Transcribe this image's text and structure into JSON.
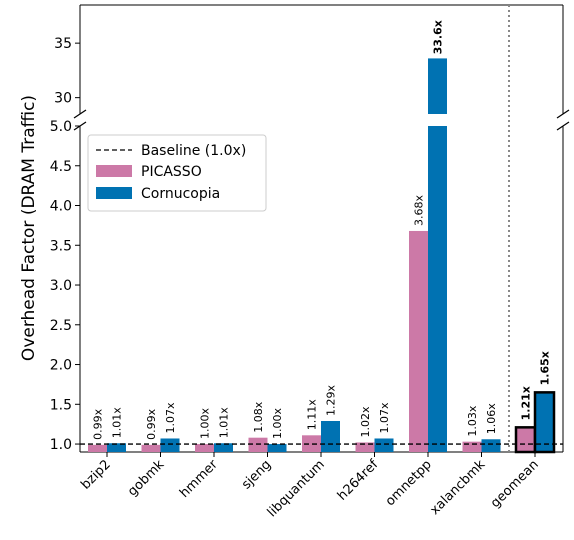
{
  "chart_data": {
    "type": "bar",
    "title": "",
    "xlabel": "",
    "ylabel": "Overhead Factor (DRAM Traffic)",
    "categories": [
      "bzip2",
      "gobmk",
      "hmmer",
      "sjeng",
      "libquantum",
      "h264ref",
      "omnetpp",
      "xalancbmk",
      "geomean"
    ],
    "series": [
      {
        "name": "PICASSO",
        "color": "#cc79a7",
        "values": [
          0.99,
          0.99,
          1.0,
          1.08,
          1.11,
          1.02,
          3.68,
          1.03,
          1.21
        ],
        "labels": [
          "0.99x",
          "0.99x",
          "1.00x",
          "1.08x",
          "1.11x",
          "1.02x",
          "3.68x",
          "1.03x",
          "1.21x"
        ]
      },
      {
        "name": "Cornucopia",
        "color": "#0072b2",
        "values": [
          1.01,
          1.07,
          1.01,
          1.0,
          1.29,
          1.07,
          33.6,
          1.06,
          1.65
        ],
        "labels": [
          "1.01x",
          "1.07x",
          "1.01x",
          "1.00x",
          "1.29x",
          "1.07x",
          "33.6x",
          "1.06x",
          "1.65x"
        ]
      }
    ],
    "baseline": {
      "value": 1.0,
      "label": "Baseline (1.0x)"
    },
    "broken_axis": {
      "lower_ylim": [
        0.9,
        5.0
      ],
      "upper_ylim": [
        28.5,
        38.5
      ],
      "lower_ticks": [
        "1.0",
        "1.5",
        "2.0",
        "2.5",
        "3.0",
        "3.5",
        "4.0",
        "4.5",
        "5.0"
      ],
      "upper_ticks": [
        "30",
        "35"
      ]
    },
    "legend_position": "upper-left",
    "grid": false,
    "highlighted_category": "geomean"
  }
}
